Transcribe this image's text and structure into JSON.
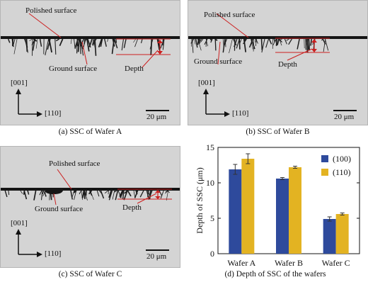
{
  "panels": [
    {
      "caption": "(a) SSC of Wafer A",
      "labels": {
        "polished": "Polished surface",
        "ground": "Ground surface",
        "depth": "Depth"
      },
      "axis": {
        "up": "[001]",
        "right": "[110]"
      },
      "scalebar": "20 μm"
    },
    {
      "caption": "(b) SSC of Wafer B",
      "labels": {
        "polished": "Polished surface",
        "ground": "Ground surface",
        "depth": "Depth"
      },
      "axis": {
        "up": "[001]",
        "right": "[110]"
      },
      "scalebar": "20 μm"
    },
    {
      "caption": "(c) SSC of Wafer C",
      "labels": {
        "polished": "Polished surface",
        "ground": "Ground surface",
        "depth": "Depth"
      },
      "axis": {
        "up": "[001]",
        "right": "[110]"
      },
      "scalebar": "20 μm"
    }
  ],
  "colors": {
    "s100": "#2e4a9c",
    "s110": "#e3b322",
    "marker": "#cc1f1f"
  },
  "chart_data": {
    "type": "bar",
    "caption": "(d) Depth of SSC of the wafers",
    "ylabel": "Depth of SSC (μm)",
    "xlabel": "",
    "ylim": [
      0,
      15
    ],
    "yticks": [
      "0",
      "5",
      "10",
      "15"
    ],
    "categories": [
      "Wafer A",
      "Wafer B",
      "Wafer C"
    ],
    "series": [
      {
        "name": "(100)",
        "values": [
          11.9,
          10.6,
          4.9
        ],
        "errors": [
          0.7,
          0.15,
          0.3
        ]
      },
      {
        "name": "(110)",
        "values": [
          13.4,
          12.2,
          5.6
        ],
        "errors": [
          0.7,
          0.15,
          0.15
        ]
      }
    ],
    "legend": "top-right",
    "grid": false
  }
}
